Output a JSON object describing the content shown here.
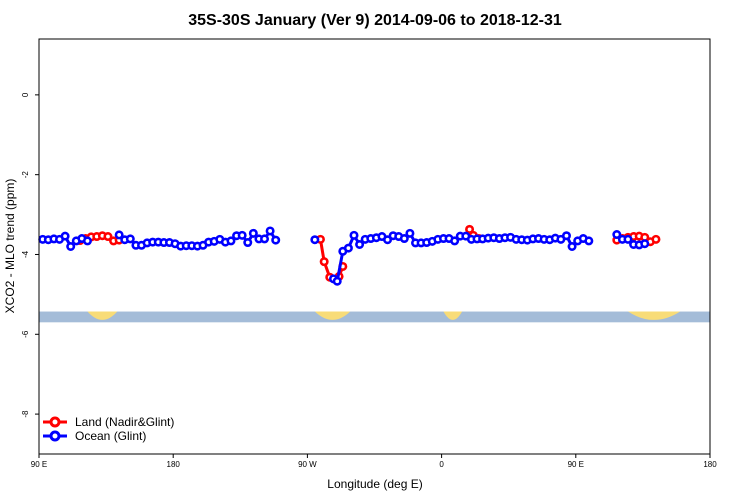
{
  "chart_data": {
    "type": "line",
    "title": "35S-30S January (Ver 9)   2014-09-06 to 2018-12-31",
    "xlabel": "Longitude (deg E)",
    "ylabel": "XCO2 - MLO trend (ppm)",
    "xlim": [
      90,
      450
    ],
    "ylim": [
      -9.0,
      1.4
    ],
    "x_ticks": [
      {
        "value": 90,
        "label": "90 E"
      },
      {
        "value": 162,
        "label": "180"
      },
      {
        "value": 234,
        "label": "90 W"
      },
      {
        "value": 306,
        "label": "0"
      },
      {
        "value": 378,
        "label": "90 E"
      },
      {
        "value": 450,
        "label": "180"
      }
    ],
    "y_ticks": [
      0,
      -2,
      -4,
      -6,
      -8
    ],
    "grid": false,
    "legend_position": "bottom-left",
    "colors": {
      "land": "#ff0000",
      "ocean": "#0000ff",
      "sea_strip": "#a4bcd8",
      "land_strip": "#f8dc78"
    },
    "series": [
      {
        "name": "Land (Nadir&Glint)",
        "color": "#ff0000",
        "segments": [
          [
            [
              112,
              -3.65
            ],
            [
              115,
              -3.6
            ],
            [
              118,
              -3.56
            ],
            [
              121,
              -3.55
            ],
            [
              124,
              -3.53
            ],
            [
              127,
              -3.55
            ],
            [
              130,
              -3.66
            ],
            [
              133,
              -3.64
            ]
          ],
          [
            [
              241,
              -3.62
            ],
            [
              243,
              -4.18
            ],
            [
              246,
              -4.57
            ],
            [
              249,
              -4.62
            ],
            [
              251,
              -4.55
            ],
            [
              253,
              -4.3
            ]
          ],
          [
            [
              321,
              -3.37
            ],
            [
              323,
              -3.52
            ],
            [
              326,
              -3.6
            ]
          ],
          [
            [
              400,
              -3.64
            ],
            [
              403,
              -3.6
            ],
            [
              406,
              -3.57
            ],
            [
              409,
              -3.55
            ],
            [
              412,
              -3.54
            ],
            [
              415,
              -3.57
            ],
            [
              418,
              -3.68
            ],
            [
              421,
              -3.62
            ]
          ]
        ]
      },
      {
        "name": "Ocean (Glint)",
        "color": "#0000ff",
        "points": [
          [
            92,
            -3.62
          ],
          [
            95,
            -3.63
          ],
          [
            98,
            -3.61
          ],
          [
            101,
            -3.62
          ],
          [
            104,
            -3.54
          ],
          [
            107,
            -3.8
          ],
          [
            110,
            -3.66
          ],
          [
            113,
            -3.6
          ],
          [
            116,
            -3.66
          ],
          [
            133,
            -3.51
          ],
          [
            136,
            -3.63
          ],
          [
            139,
            -3.61
          ],
          [
            142,
            -3.77
          ],
          [
            145,
            -3.77
          ],
          [
            148,
            -3.71
          ],
          [
            151,
            -3.69
          ],
          [
            154,
            -3.69
          ],
          [
            157,
            -3.7
          ],
          [
            160,
            -3.7
          ],
          [
            163,
            -3.73
          ],
          [
            166,
            -3.79
          ],
          [
            169,
            -3.78
          ],
          [
            172,
            -3.78
          ],
          [
            175,
            -3.79
          ],
          [
            178,
            -3.77
          ],
          [
            181,
            -3.69
          ],
          [
            184,
            -3.67
          ],
          [
            187,
            -3.62
          ],
          [
            190,
            -3.69
          ],
          [
            193,
            -3.66
          ],
          [
            196,
            -3.53
          ],
          [
            199,
            -3.52
          ],
          [
            202,
            -3.7
          ],
          [
            205,
            -3.47
          ],
          [
            208,
            -3.61
          ],
          [
            211,
            -3.61
          ],
          [
            214,
            -3.41
          ],
          [
            217,
            -3.64
          ],
          [
            238,
            -3.63
          ],
          [
            248,
            -4.61
          ],
          [
            250,
            -4.67
          ],
          [
            253,
            -3.92
          ],
          [
            256,
            -3.84
          ],
          [
            259,
            -3.52
          ],
          [
            262,
            -3.75
          ],
          [
            265,
            -3.62
          ],
          [
            268,
            -3.6
          ],
          [
            271,
            -3.58
          ],
          [
            274,
            -3.55
          ],
          [
            277,
            -3.63
          ],
          [
            280,
            -3.53
          ],
          [
            283,
            -3.55
          ],
          [
            286,
            -3.6
          ],
          [
            289,
            -3.47
          ],
          [
            292,
            -3.71
          ],
          [
            295,
            -3.71
          ],
          [
            298,
            -3.7
          ],
          [
            301,
            -3.67
          ],
          [
            304,
            -3.62
          ],
          [
            307,
            -3.6
          ],
          [
            310,
            -3.6
          ],
          [
            313,
            -3.66
          ],
          [
            316,
            -3.54
          ],
          [
            319,
            -3.54
          ],
          [
            322,
            -3.62
          ],
          [
            325,
            -3.61
          ],
          [
            328,
            -3.61
          ],
          [
            331,
            -3.59
          ],
          [
            334,
            -3.58
          ],
          [
            337,
            -3.6
          ],
          [
            340,
            -3.58
          ],
          [
            343,
            -3.57
          ],
          [
            346,
            -3.62
          ],
          [
            349,
            -3.63
          ],
          [
            352,
            -3.64
          ],
          [
            355,
            -3.61
          ],
          [
            358,
            -3.6
          ],
          [
            361,
            -3.62
          ],
          [
            364,
            -3.63
          ],
          [
            367,
            -3.59
          ],
          [
            370,
            -3.62
          ],
          [
            373,
            -3.53
          ],
          [
            376,
            -3.8
          ],
          [
            379,
            -3.66
          ],
          [
            382,
            -3.6
          ],
          [
            385,
            -3.66
          ],
          [
            400,
            -3.5
          ],
          [
            403,
            -3.62
          ],
          [
            406,
            -3.62
          ],
          [
            409,
            -3.75
          ],
          [
            412,
            -3.76
          ],
          [
            415,
            -3.73
          ]
        ]
      }
    ],
    "land_sea_strip": {
      "y_top": -5.43,
      "y_bottom": -5.7,
      "land_spans": [
        [
          116,
          132
        ],
        [
          238,
          257
        ],
        [
          307,
          317
        ],
        [
          406,
          434
        ]
      ]
    }
  }
}
